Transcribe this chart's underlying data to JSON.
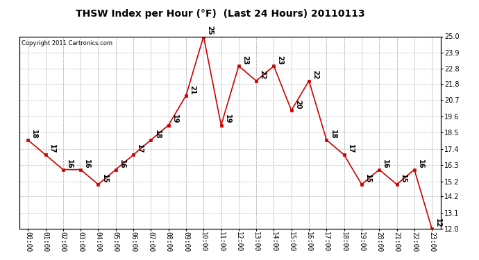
{
  "title": "THSW Index per Hour (°F)  (Last 24 Hours) 20110113",
  "copyright": "Copyright 2011 Cartronics.com",
  "hours": [
    "00:00",
    "01:00",
    "02:00",
    "03:00",
    "04:00",
    "05:00",
    "06:00",
    "07:00",
    "08:00",
    "09:00",
    "10:00",
    "11:00",
    "12:00",
    "13:00",
    "14:00",
    "15:00",
    "16:00",
    "17:00",
    "18:00",
    "19:00",
    "20:00",
    "21:00",
    "22:00",
    "23:00"
  ],
  "values": [
    18,
    17,
    16,
    16,
    15,
    16,
    17,
    18,
    19,
    21,
    25,
    19,
    23,
    22,
    23,
    20,
    22,
    18,
    17,
    15,
    16,
    15,
    16,
    12
  ],
  "line_color": "#cc0000",
  "marker_color": "#cc0000",
  "background_color": "#ffffff",
  "grid_color": "#bbbbbb",
  "ymin": 12.0,
  "ymax": 25.0,
  "yticks_right": [
    25.0,
    23.9,
    22.8,
    21.8,
    20.7,
    19.6,
    18.5,
    17.4,
    16.3,
    15.2,
    14.2,
    13.1,
    12.0
  ],
  "title_fontsize": 10,
  "copyright_fontsize": 6,
  "label_fontsize": 7,
  "tick_fontsize": 7,
  "annot_fontsize": 7
}
